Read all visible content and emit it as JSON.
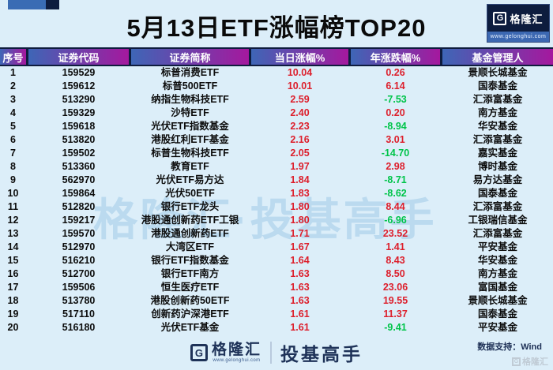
{
  "title": "5月13日ETF涨幅榜TOP20",
  "logo": {
    "g": "G",
    "name": "格隆汇",
    "url": "www.gelonghui.com"
  },
  "watermark": "格隆汇·投基高手",
  "chart_data": {
    "type": "table",
    "title": "5月13日ETF涨幅榜TOP20",
    "columns": [
      "序号",
      "证券代码",
      "证券简称",
      "当日涨幅%",
      "年涨跌幅%",
      "基金管理人"
    ],
    "rows": [
      [
        "1",
        "159529",
        "标普消费ETF",
        "10.04",
        "0.26",
        "景顺长城基金"
      ],
      [
        "2",
        "159612",
        "标普500ETF",
        "10.01",
        "6.14",
        "国泰基金"
      ],
      [
        "3",
        "513290",
        "纳指生物科技ETF",
        "2.59",
        "-7.53",
        "汇添富基金"
      ],
      [
        "4",
        "159329",
        "沙特ETF",
        "2.40",
        "0.20",
        "南方基金"
      ],
      [
        "5",
        "159618",
        "光伏ETF指数基金",
        "2.23",
        "-8.94",
        "华安基金"
      ],
      [
        "6",
        "513820",
        "港股红利ETF基金",
        "2.16",
        "3.01",
        "汇添富基金"
      ],
      [
        "7",
        "159502",
        "标普生物科技ETF",
        "2.05",
        "-14.70",
        "嘉实基金"
      ],
      [
        "8",
        "513360",
        "教育ETF",
        "1.97",
        "2.98",
        "博时基金"
      ],
      [
        "9",
        "562970",
        "光伏ETF易方达",
        "1.84",
        "-8.71",
        "易方达基金"
      ],
      [
        "10",
        "159864",
        "光伏50ETF",
        "1.83",
        "-8.62",
        "国泰基金"
      ],
      [
        "11",
        "512820",
        "银行ETF龙头",
        "1.80",
        "8.44",
        "汇添富基金"
      ],
      [
        "12",
        "159217",
        "港股通创新药ETF工银",
        "1.80",
        "-6.96",
        "工银瑞信基金"
      ],
      [
        "13",
        "159570",
        "港股通创新药ETF",
        "1.71",
        "23.52",
        "汇添富基金"
      ],
      [
        "14",
        "512970",
        "大湾区ETF",
        "1.67",
        "1.41",
        "平安基金"
      ],
      [
        "15",
        "516210",
        "银行ETF指数基金",
        "1.64",
        "8.43",
        "华安基金"
      ],
      [
        "16",
        "512700",
        "银行ETF南方",
        "1.63",
        "8.50",
        "南方基金"
      ],
      [
        "17",
        "159506",
        "恒生医疗ETF",
        "1.63",
        "23.06",
        "富国基金"
      ],
      [
        "18",
        "513780",
        "港股创新药50ETF",
        "1.63",
        "19.55",
        "景顺长城基金"
      ],
      [
        "19",
        "517110",
        "创新药沪深港ETF",
        "1.61",
        "11.37",
        "国泰基金"
      ],
      [
        "20",
        "516180",
        "光伏ETF基金",
        "1.61",
        "-9.41",
        "平安基金"
      ]
    ],
    "value_colors": {
      "positive": "#dd1f2c",
      "negative": "#00c44a"
    },
    "legend_position": "none",
    "grid": false
  },
  "footer": {
    "logo_g": "G",
    "logo_name": "格隆汇",
    "logo_url": "www.gelonghui.com",
    "slogan": "投基高手",
    "data_support": "数据支持：Wind",
    "corner_watermark_g": "G",
    "corner_watermark": "格隆汇"
  },
  "colors": {
    "background": "#dceef9",
    "header_gradient_start": "#3e66b6",
    "header_gradient_end": "#a5189e",
    "navy": "#0e1c3e",
    "deco_blue": "#3a6cb4",
    "red": "#dd1f2c",
    "green": "#00c44a"
  }
}
